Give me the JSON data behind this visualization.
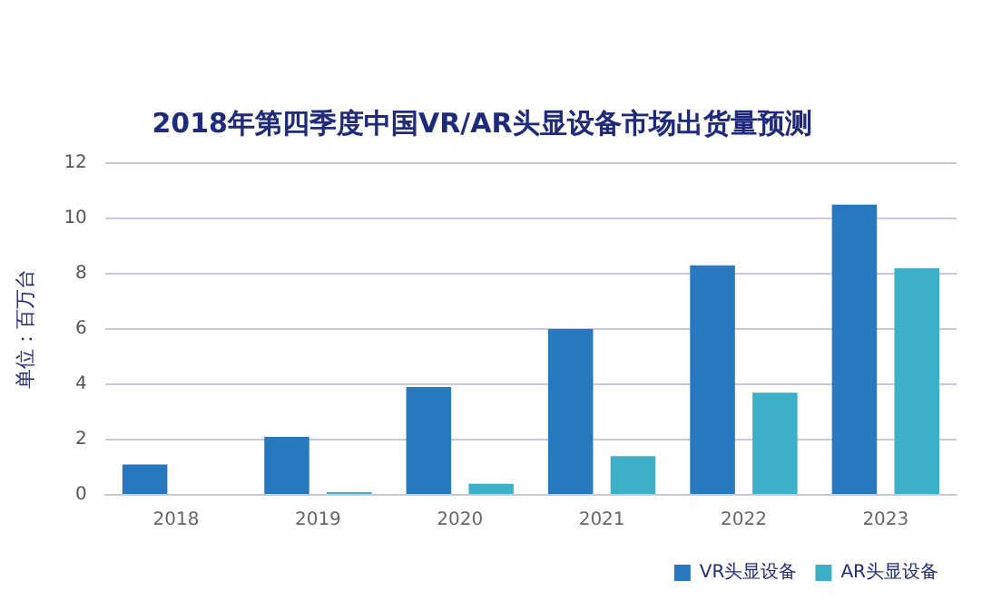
{
  "chart_data": {
    "type": "bar",
    "title": "2018年第四季度中国VR/AR头显设备市场出货量预测",
    "ylabel": "单位：百万台",
    "categories": [
      "2018",
      "2019",
      "2020",
      "2021",
      "2022",
      "2023"
    ],
    "series": [
      {
        "name": "VR头显设备",
        "color": "#2878bf",
        "values": [
          1.1,
          2.1,
          3.9,
          6.0,
          8.3,
          10.5
        ]
      },
      {
        "name": "AR头显设备",
        "color": "#3cb0c8",
        "values": [
          0,
          0.1,
          0.4,
          1.4,
          3.7,
          8.2
        ]
      }
    ],
    "ylim": [
      0,
      12
    ],
    "yticks": [
      0,
      2,
      4,
      6,
      8,
      10,
      12
    ],
    "grid": "y",
    "legend": "bottom right"
  }
}
